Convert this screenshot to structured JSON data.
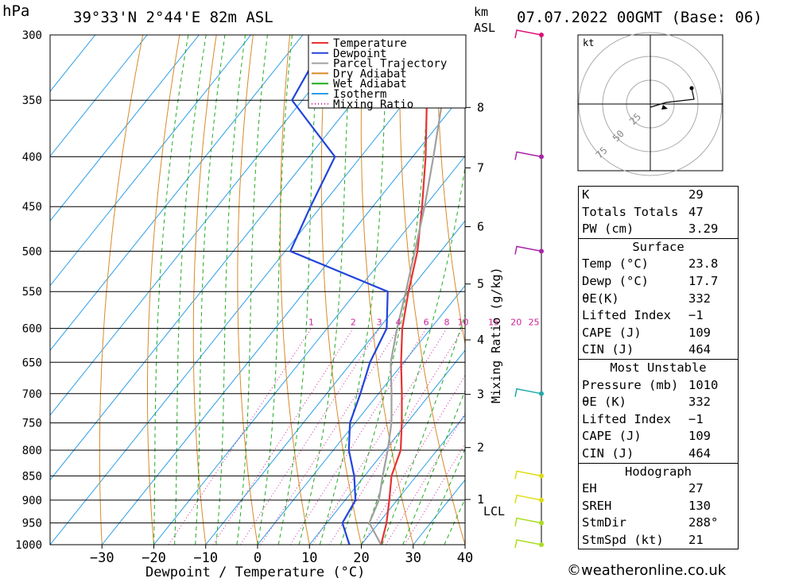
{
  "header": {
    "pressure_unit": "hPa",
    "location": "39°33'N  2°44'E  82m  ASL",
    "height_unit": "km",
    "height_ref": "ASL",
    "datetime": "07.07.2022  00GMT  (Base: 06)"
  },
  "chart_data": {
    "type": "line",
    "title": "39°33'N  2°44'E  82m  ASL",
    "xlabel": "Dewpoint / Temperature (°C)",
    "ylabel": "hPa",
    "y2label": "Mixing Ratio (g/kg)",
    "xlim": [
      -40,
      40
    ],
    "ylim": [
      1000,
      300
    ],
    "y_log": true,
    "skew": true,
    "x_ticks": [
      "−30",
      "−20",
      "−10",
      "0",
      "10",
      "20",
      "30",
      "40"
    ],
    "pressure_levels": [
      300,
      350,
      400,
      450,
      500,
      550,
      600,
      650,
      700,
      750,
      800,
      850,
      900,
      950,
      1000
    ],
    "height_ticks_km": [
      "8",
      "7",
      "6",
      "5",
      "4",
      "3",
      "2",
      "1"
    ],
    "lcl_label": "LCL",
    "mixing_ratio_labels": [
      "1",
      "2",
      "3",
      "4",
      "6",
      "8",
      "10",
      "15",
      "20",
      "25"
    ],
    "legend": {
      "placement": "top",
      "entries": [
        {
          "label": "Temperature",
          "color": "#e83232",
          "style": "solid"
        },
        {
          "label": "Dewpoint",
          "color": "#2244dd",
          "style": "solid"
        },
        {
          "label": "Parcel Trajectory",
          "color": "#a0a0a0",
          "style": "solid"
        },
        {
          "label": "Dry Adiabat",
          "color": "#d88a2a",
          "style": "solid"
        },
        {
          "label": "Wet Adiabat",
          "color": "#22aa22",
          "style": "solid"
        },
        {
          "label": "Isotherm",
          "color": "#2a9ee8",
          "style": "solid"
        },
        {
          "label": "Mixing Ratio",
          "color": "#cc2299",
          "style": "dotted"
        }
      ]
    },
    "series": [
      {
        "name": "Temperature",
        "p": [
          1000,
          950,
          900,
          850,
          800,
          750,
          700,
          650,
          600,
          550,
          500,
          450,
          400,
          350,
          300
        ],
        "t": [
          23.8,
          21.5,
          18.5,
          15.2,
          13,
          9,
          4.5,
          -0.5,
          -5.5,
          -10,
          -14.5,
          -20.5,
          -27.5,
          -36,
          -45
        ]
      },
      {
        "name": "Dewpoint",
        "p": [
          1000,
          950,
          900,
          850,
          800,
          750,
          700,
          650,
          600,
          550,
          500,
          450,
          400,
          350,
          300
        ],
        "t": [
          17.7,
          13,
          12,
          8,
          3,
          -1,
          -3.5,
          -6.5,
          -8.5,
          -14,
          -39,
          -42,
          -45,
          -62,
          -65
        ]
      },
      {
        "name": "Parcel Trajectory",
        "p": [
          1000,
          950,
          900,
          850,
          800,
          750,
          700,
          650,
          600,
          550,
          500,
          450,
          400,
          350,
          300
        ],
        "t": [
          23.8,
          18.2,
          16.5,
          13.5,
          10.5,
          7,
          2.5,
          -2.5,
          -6.5,
          -10.5,
          -15,
          -20,
          -26,
          -33,
          -43
        ]
      }
    ],
    "wind_barbs": [
      {
        "p": 300,
        "color": "#dd1177"
      },
      {
        "p": 400,
        "color": "#aa22aa"
      },
      {
        "p": 500,
        "color": "#aa22aa"
      },
      {
        "p": 700,
        "color": "#22aaaa"
      },
      {
        "p": 850,
        "color": "#dddd11"
      },
      {
        "p": 900,
        "color": "#dddd11"
      },
      {
        "p": 950,
        "color": "#aadd22"
      },
      {
        "p": 1000,
        "color": "#aadd22"
      }
    ]
  },
  "hodograph": {
    "unit": "kt",
    "ring_labels": [
      "25",
      "50",
      "75"
    ]
  },
  "indices": {
    "k_label": "K",
    "k_value": "29",
    "tt_label": "Totals Totals",
    "tt_value": "47",
    "pw_label": "PW (cm)",
    "pw_value": "3.29"
  },
  "surface": {
    "title": "Surface",
    "temp_label": "Temp (°C)",
    "temp_value": "23.8",
    "dewp_label": "Dewp (°C)",
    "dewp_value": "17.7",
    "theta_label": "θE(K)",
    "theta_value": "332",
    "li_label": "Lifted Index",
    "li_value": "−1",
    "cape_label": "CAPE (J)",
    "cape_value": "109",
    "cin_label": "CIN (J)",
    "cin_value": "464"
  },
  "most_unstable": {
    "title": "Most Unstable",
    "pressure_label": "Pressure (mb)",
    "pressure_value": "1010",
    "theta_label": "θE (K)",
    "theta_value": "332",
    "li_label": "Lifted Index",
    "li_value": "−1",
    "cape_label": "CAPE (J)",
    "cape_value": "109",
    "cin_label": "CIN (J)",
    "cin_value": "464"
  },
  "hodograph_table": {
    "title": "Hodograph",
    "eh_label": "EH",
    "eh_value": "27",
    "sreh_label": "SREH",
    "sreh_value": "130",
    "stmdir_label": "StmDir",
    "stmdir_value": "288°",
    "stmspd_label": "StmSpd (kt)",
    "stmspd_value": "21"
  },
  "footer": {
    "copyright": "©weatheronline.co.uk"
  }
}
